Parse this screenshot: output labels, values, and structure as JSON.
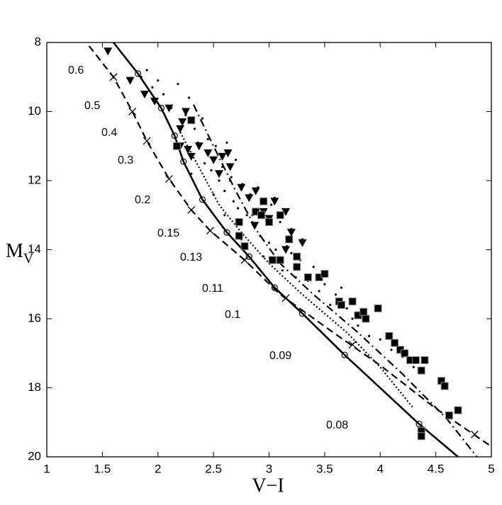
{
  "chart_data": {
    "type": "line",
    "xlabel": "V−I",
    "ylabel": "M",
    "ylabel_subscript": "V",
    "xlim": [
      1,
      5
    ],
    "ylim": [
      8,
      20
    ],
    "y_inverted": true,
    "xticks": [
      1,
      1.5,
      2,
      2.5,
      3,
      3.5,
      4,
      4.5,
      5
    ],
    "yticks": [
      8,
      10,
      12,
      14,
      16,
      18,
      20
    ],
    "annotations": [
      "0.6",
      "0.5",
      "0.4",
      "0.3",
      "0.2",
      "0.15",
      "0.13",
      "0.11",
      "0.1",
      "0.09",
      "0.08"
    ],
    "series": [
      {
        "kind": "line",
        "dash": "solid",
        "color": "#000000",
        "x": [
          1.6,
          1.82,
          2.03,
          2.15,
          2.23,
          2.4,
          2.62,
          2.82,
          3.05,
          3.3,
          3.68,
          4.35,
          4.7
        ],
        "y": [
          8.0,
          8.9,
          9.9,
          10.7,
          11.45,
          12.55,
          13.5,
          14.2,
          15.1,
          15.85,
          17.05,
          19.05,
          20
        ]
      },
      {
        "kind": "scatter",
        "marker": "circle",
        "color": "#000000",
        "x": [
          1.82,
          2.03,
          2.15,
          2.23,
          2.4,
          2.62,
          2.82,
          3.05,
          3.3,
          3.68,
          4.35
        ],
        "y": [
          8.9,
          9.9,
          10.7,
          11.45,
          12.55,
          13.5,
          14.2,
          15.1,
          15.85,
          17.05,
          19.05
        ]
      },
      {
        "kind": "line",
        "dash": "dashed",
        "color": "#000000",
        "x": [
          1.38,
          1.6,
          1.77,
          1.9,
          2.1,
          2.3,
          2.47,
          2.78,
          3.1,
          3.6,
          4.0,
          4.5,
          5.0
        ],
        "y": [
          8.1,
          9.0,
          10.0,
          10.85,
          11.95,
          12.85,
          13.45,
          14.3,
          15.3,
          16.45,
          17.35,
          18.6,
          19.7
        ]
      },
      {
        "kind": "scatter",
        "marker": "cross",
        "color": "#000000",
        "x": [
          1.6,
          1.77,
          1.9,
          2.1,
          2.3,
          2.47,
          2.78,
          3.15,
          3.75,
          4.85
        ],
        "y": [
          9.0,
          10.0,
          10.85,
          11.95,
          12.85,
          13.45,
          14.3,
          15.4,
          16.75,
          19.35
        ]
      },
      {
        "kind": "line",
        "dash": "dashdot",
        "color": "#000000",
        "x": [
          2.32,
          2.5,
          2.7,
          2.9,
          3.1,
          3.4,
          3.8,
          4.2,
          4.6,
          4.87
        ],
        "y": [
          9.8,
          11.0,
          12.3,
          13.5,
          14.4,
          15.3,
          16.4,
          17.6,
          18.9,
          20
        ]
      },
      {
        "kind": "line",
        "dash": "dotted",
        "color": "#000000",
        "x": [
          2.2,
          2.4,
          2.55,
          2.75,
          3.0,
          3.3,
          3.7,
          4.0,
          4.3
        ],
        "y": [
          10.6,
          11.8,
          12.7,
          13.5,
          14.4,
          15.3,
          16.4,
          17.4,
          18.6
        ]
      },
      {
        "kind": "scatter",
        "marker": "dot",
        "color": "#000000",
        "x": [
          1.85,
          1.9,
          1.95,
          2.0,
          2.05,
          2.12,
          2.18,
          2.25,
          2.28,
          2.33,
          2.36,
          2.4,
          2.42,
          2.45,
          2.48,
          2.52,
          2.55,
          2.58,
          2.6,
          2.62,
          2.66,
          2.68,
          2.7,
          2.72,
          2.76,
          2.8,
          2.83,
          2.86,
          2.9,
          2.92,
          2.96,
          3.0,
          3.02,
          3.06,
          3.1,
          3.12,
          3.16,
          3.2,
          3.24,
          3.28,
          3.3,
          3.35,
          3.4,
          3.45,
          3.5,
          3.55,
          3.6,
          3.65,
          3.7,
          3.75,
          3.8,
          3.9,
          4.0,
          4.1,
          4.2,
          4.3,
          2.3,
          2.5,
          2.65,
          2.85,
          3.05,
          3.2,
          2.6,
          2.75,
          2.95
        ],
        "y": [
          9.0,
          8.8,
          9.3,
          9.1,
          9.5,
          9.9,
          9.2,
          10.1,
          9.6,
          10.5,
          10.9,
          10.2,
          11.5,
          10.8,
          11.7,
          11.0,
          12.0,
          11.6,
          12.3,
          10.9,
          11.9,
          12.6,
          11.4,
          12.8,
          12.1,
          13.0,
          12.4,
          13.3,
          12.2,
          13.6,
          12.9,
          13.8,
          12.7,
          14.0,
          13.2,
          14.6,
          13.9,
          13.4,
          14.8,
          14.3,
          13.7,
          14.9,
          14.5,
          15.2,
          15.0,
          15.6,
          15.3,
          15.1,
          15.7,
          16.0,
          16.2,
          16.5,
          16.6,
          16.9,
          17.1,
          17.4,
          11.8,
          12.4,
          12.0,
          13.0,
          12.5,
          14.1,
          13.0,
          13.7,
          14.2
        ]
      },
      {
        "kind": "scatter",
        "marker": "triangle",
        "color": "#000000",
        "x": [
          1.55,
          1.75,
          1.88,
          1.97,
          2.1,
          2.2,
          2.22,
          2.25,
          2.2,
          2.27,
          2.3,
          2.37,
          2.45,
          2.5,
          2.58,
          2.63,
          2.55,
          2.75,
          2.82,
          2.88,
          2.95,
          3.0,
          3.05,
          3.15,
          3.2,
          3.15,
          3.3,
          2.87,
          2.65
        ],
        "y": [
          8.25,
          9.1,
          9.5,
          9.7,
          9.9,
          10.5,
          10.3,
          10.0,
          11.0,
          11.1,
          11.3,
          11.0,
          11.2,
          11.4,
          11.3,
          11.2,
          11.8,
          12.2,
          12.5,
          12.3,
          12.9,
          13.1,
          12.6,
          12.9,
          13.5,
          14.0,
          13.8,
          13.3,
          11.6
        ]
      },
      {
        "kind": "scatter",
        "marker": "square",
        "color": "#000000",
        "x": [
          2.3,
          2.17,
          2.73,
          2.73,
          2.78,
          2.88,
          2.93,
          3.0,
          3.03,
          3.1,
          3.18,
          3.25,
          3.25,
          3.35,
          3.45,
          3.5,
          3.63,
          3.65,
          3.75,
          3.8,
          3.85,
          3.87,
          3.98,
          4.08,
          4.13,
          4.18,
          4.22,
          4.27,
          4.32,
          4.4,
          4.37,
          4.55,
          4.58,
          4.62,
          4.7,
          4.37,
          4.37,
          2.95,
          3.1
        ],
        "y": [
          10.25,
          11.0,
          13.2,
          13.6,
          13.9,
          12.9,
          13.0,
          13.2,
          14.3,
          14.3,
          13.7,
          14.2,
          14.5,
          14.8,
          14.8,
          14.7,
          15.5,
          15.6,
          15.5,
          15.9,
          15.8,
          16.0,
          15.7,
          16.5,
          16.7,
          16.9,
          17.0,
          17.2,
          17.2,
          17.2,
          17.5,
          17.8,
          17.95,
          18.8,
          18.65,
          19.25,
          19.4,
          12.6,
          13.0
        ]
      }
    ]
  }
}
